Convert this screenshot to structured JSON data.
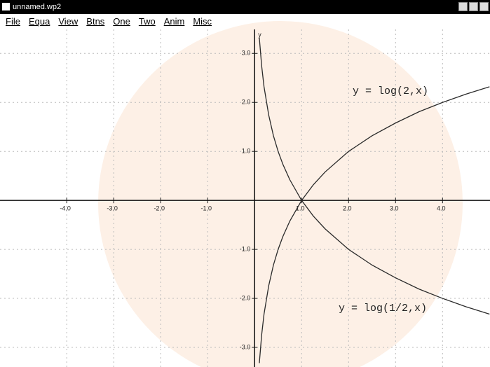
{
  "window": {
    "title": "unnamed.wp2"
  },
  "menu": [
    "File",
    "Equa",
    "View",
    "Btns",
    "One",
    "Two",
    "Anim",
    "Misc"
  ],
  "chart_data": {
    "type": "line",
    "y_label": "y",
    "x": [
      0.1,
      0.15,
      0.2,
      0.3,
      0.4,
      0.5,
      0.6,
      0.75,
      1,
      1.25,
      1.5,
      2,
      2.5,
      3,
      3.5,
      4,
      4.5,
      5
    ],
    "series": [
      {
        "name": "y = log(2,x)",
        "color": "#2a2a2a",
        "values": [
          -3.32,
          -2.74,
          -2.32,
          -1.74,
          -1.32,
          -1,
          -0.74,
          -0.42,
          0,
          0.32,
          0.58,
          1,
          1.32,
          1.58,
          1.81,
          2,
          2.17,
          2.32
        ]
      },
      {
        "name": "y = log(1/2,x)",
        "color": "#2a2a2a",
        "values": [
          3.32,
          2.74,
          2.32,
          1.74,
          1.32,
          1,
          0.74,
          0.42,
          0,
          -0.32,
          -0.58,
          -1,
          -1.32,
          -1.58,
          -1.81,
          -2,
          -2.17,
          -2.32
        ]
      }
    ],
    "xlim": [
      -5.42,
      5.01
    ],
    "ylim": [
      -3.4,
      3.49
    ],
    "xticks": [
      {
        "value": -4,
        "label": "-4.0"
      },
      {
        "value": -3,
        "label": "-3.0"
      },
      {
        "value": -2,
        "label": "-2.0"
      },
      {
        "value": -1,
        "label": "-1.0"
      },
      {
        "value": 1,
        "label": "1.0"
      },
      {
        "value": 2,
        "label": "2.0"
      },
      {
        "value": 3,
        "label": "3.0"
      },
      {
        "value": 4,
        "label": "4.0"
      }
    ],
    "yticks": [
      {
        "value": -3,
        "label": "-3.0"
      },
      {
        "value": -2,
        "label": "-2.0"
      },
      {
        "value": -1,
        "label": "-1.0"
      },
      {
        "value": 1,
        "label": "1.0"
      },
      {
        "value": 2,
        "label": "2.0"
      },
      {
        "value": 3,
        "label": "3.0"
      }
    ],
    "grid": true
  }
}
